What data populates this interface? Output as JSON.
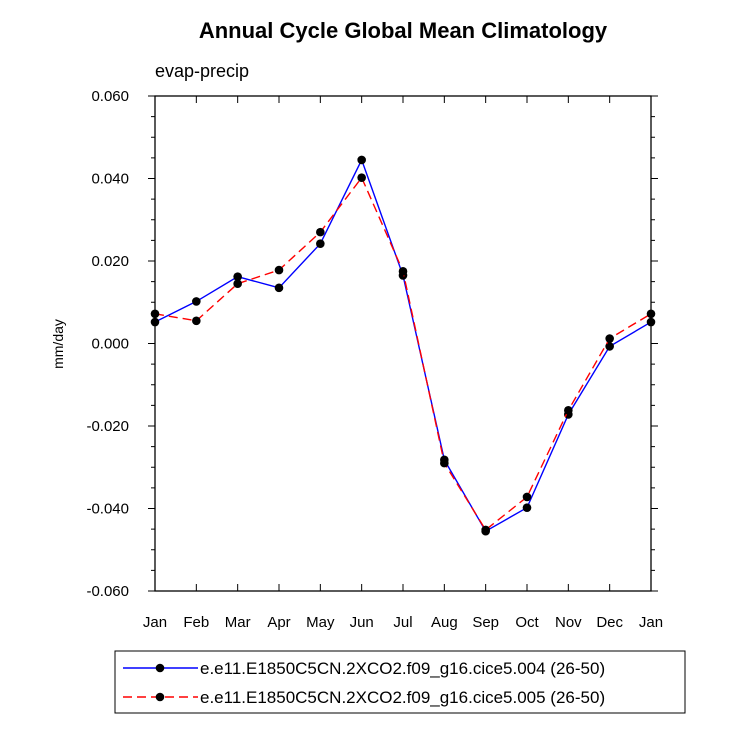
{
  "chart_data": {
    "type": "line",
    "title": "Annual Cycle Global Mean Climatology",
    "subtitle": "evap-precip",
    "xlabel": "",
    "ylabel": "mm/day",
    "categories": [
      "Jan",
      "Feb",
      "Mar",
      "Apr",
      "May",
      "Jun",
      "Jul",
      "Aug",
      "Sep",
      "Oct",
      "Nov",
      "Dec",
      "Jan"
    ],
    "ylim": [
      -0.06,
      0.06
    ],
    "yticks": [
      -0.06,
      -0.04,
      -0.02,
      0.0,
      0.02,
      0.04,
      0.06
    ],
    "ytick_labels": [
      "-0.060",
      "-0.040",
      "-0.020",
      "0.000",
      "0.020",
      "0.040",
      "0.060"
    ],
    "grid": false,
    "legend_position": "bottom",
    "series": [
      {
        "name": "e.e11.E1850C5CN.2XCO2.f09_g16.cice5.004 (26-50)",
        "color": "#0000ff",
        "line_style": "solid",
        "marker": "filled-circle",
        "values": [
          0.0052,
          0.0102,
          0.0162,
          0.0135,
          0.0242,
          0.0445,
          0.0165,
          -0.0282,
          -0.0455,
          -0.0398,
          -0.0172,
          -0.0007,
          0.0052
        ]
      },
      {
        "name": "e.e11.E1850C5CN.2XCO2.f09_g16.cice5.005 (26-50)",
        "color": "#ff0000",
        "line_style": "dashed",
        "marker": "filled-circle",
        "values": [
          0.0072,
          0.0055,
          0.0145,
          0.0178,
          0.027,
          0.0402,
          0.0175,
          -0.029,
          -0.0452,
          -0.0372,
          -0.0162,
          0.0012,
          0.0072
        ]
      }
    ]
  }
}
